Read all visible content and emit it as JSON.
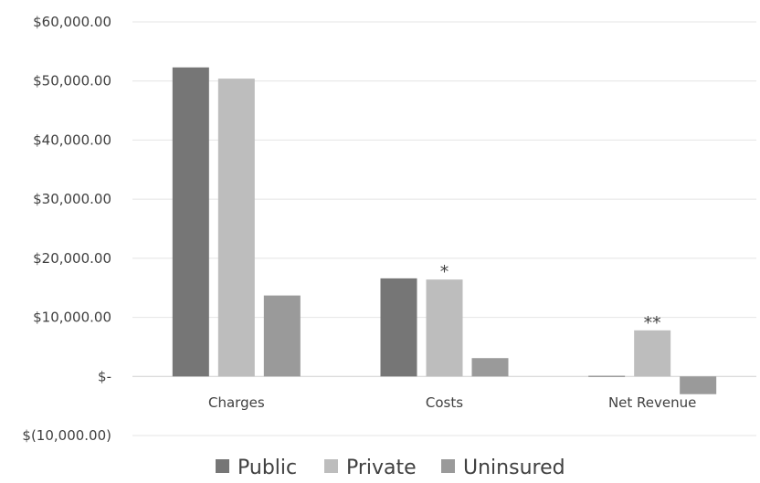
{
  "chart_data": {
    "type": "bar",
    "title": "",
    "xlabel": "",
    "ylabel": "",
    "categories": [
      "Charges",
      "Costs",
      "Net Revenue"
    ],
    "series": [
      {
        "name": "Public",
        "color": "#767676",
        "values": [
          52300,
          16600,
          100
        ]
      },
      {
        "name": "Private",
        "color": "#bdbdbd",
        "values": [
          50400,
          16400,
          7800
        ]
      },
      {
        "name": "Uninsured",
        "color": "#9a9a9a",
        "values": [
          13700,
          3100,
          -3000
        ]
      }
    ],
    "ylim": [
      -10000,
      60000
    ],
    "yticks": [
      60000,
      50000,
      40000,
      30000,
      20000,
      10000,
      0,
      -10000
    ],
    "ytick_labels": [
      "$60,000.00",
      "$50,000.00",
      "$40,000.00",
      "$30,000.00",
      "$20,000.00",
      "$10,000.00",
      "$-",
      "$(10,000.00)"
    ],
    "grid": true,
    "legend_position": "bottom",
    "annotations": [
      {
        "text": "*",
        "category": "Costs",
        "series": "Private"
      },
      {
        "text": "**",
        "category": "Net Revenue",
        "series": "Private"
      }
    ]
  }
}
